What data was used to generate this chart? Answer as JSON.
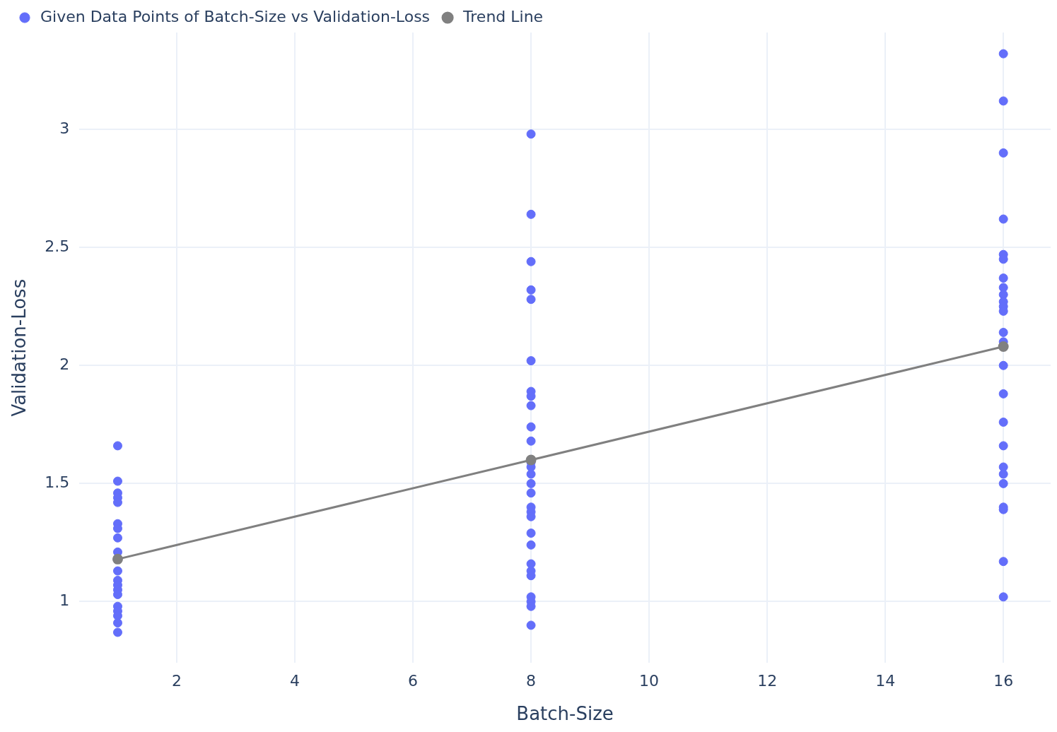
{
  "chart_data": {
    "type": "scatter",
    "xlabel": "Batch-Size",
    "ylabel": "Validation-Loss",
    "xlim": [
      0.35,
      16.8
    ],
    "ylim": [
      0.74,
      3.41
    ],
    "xticks": [
      2,
      4,
      6,
      8,
      10,
      12,
      14,
      16
    ],
    "yticks": [
      1,
      1.5,
      2,
      2.5,
      3
    ],
    "grid": true,
    "legend": "top left",
    "marker": "circle",
    "series": [
      {
        "name": "Given Data Points of Batch-Size vs Validation-Loss",
        "color": "#636efa",
        "type": "scatter",
        "x": [
          1,
          1,
          1,
          1,
          1,
          1,
          1,
          1,
          1,
          1,
          1,
          1,
          1,
          1,
          1,
          1,
          1,
          1,
          1,
          8,
          8,
          8,
          8,
          8,
          8,
          8,
          8,
          8,
          8,
          8,
          8,
          8,
          8,
          8,
          8,
          8,
          8,
          8,
          8,
          8,
          8,
          8,
          8,
          8,
          8,
          8,
          8,
          16,
          16,
          16,
          16,
          16,
          16,
          16,
          16,
          16,
          16,
          16,
          16,
          16,
          16,
          16,
          16,
          16,
          16,
          16,
          16,
          16,
          16,
          16,
          16,
          16
        ],
        "values": [
          1.66,
          1.51,
          1.46,
          1.44,
          1.42,
          1.33,
          1.31,
          1.27,
          1.21,
          1.13,
          1.09,
          1.07,
          1.05,
          1.03,
          0.98,
          0.96,
          0.94,
          0.91,
          0.87,
          2.98,
          2.64,
          2.44,
          2.32,
          2.28,
          2.02,
          1.89,
          1.87,
          1.83,
          1.74,
          1.68,
          1.59,
          1.57,
          1.54,
          1.5,
          1.46,
          1.4,
          1.38,
          1.36,
          1.29,
          1.24,
          1.16,
          1.13,
          1.11,
          1.02,
          1.0,
          0.98,
          0.9,
          3.32,
          3.12,
          2.9,
          2.62,
          2.47,
          2.45,
          2.37,
          2.33,
          2.3,
          2.27,
          2.25,
          2.23,
          2.14,
          2.1,
          2.0,
          1.88,
          1.76,
          1.66,
          1.57,
          1.54,
          1.5,
          1.4,
          1.39,
          1.17,
          1.02
        ]
      },
      {
        "name": "Trend Line",
        "color": "#808080",
        "type": "line",
        "x": [
          1,
          8,
          16
        ],
        "values": [
          1.18,
          1.6,
          2.08
        ]
      }
    ]
  }
}
